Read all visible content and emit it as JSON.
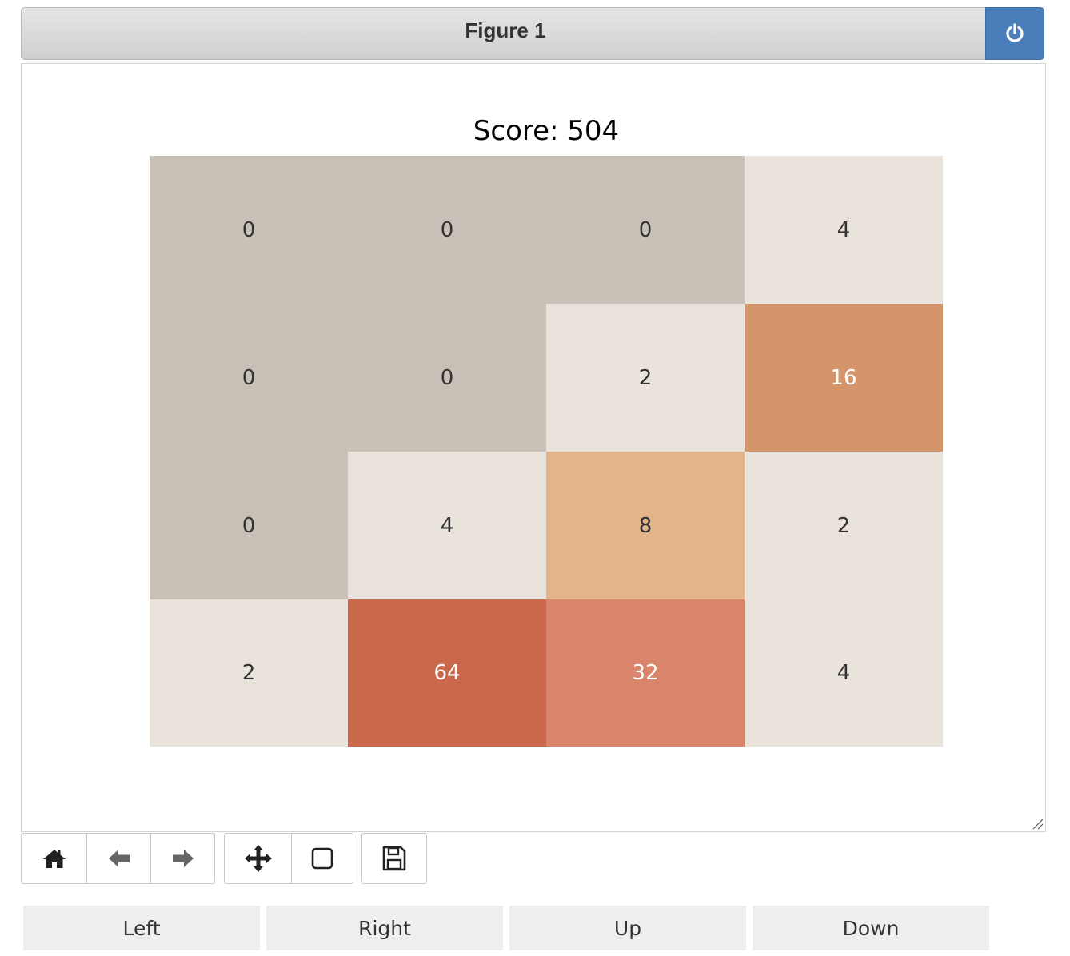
{
  "figure": {
    "title": "Figure 1"
  },
  "score": {
    "label": "Score: 504",
    "value": 504
  },
  "board": {
    "rows": 4,
    "cols": 4,
    "tiles": [
      {
        "value": "0",
        "bg": "#c9c1b8",
        "fg": "#333333"
      },
      {
        "value": "0",
        "bg": "#c9c1b8",
        "fg": "#333333"
      },
      {
        "value": "0",
        "bg": "#c9c1b8",
        "fg": "#333333"
      },
      {
        "value": "4",
        "bg": "#eae3dc",
        "fg": "#333333"
      },
      {
        "value": "0",
        "bg": "#c9c1b8",
        "fg": "#333333"
      },
      {
        "value": "0",
        "bg": "#c9c1b8",
        "fg": "#333333"
      },
      {
        "value": "2",
        "bg": "#eae3dc",
        "fg": "#333333"
      },
      {
        "value": "16",
        "bg": "#d4956a",
        "fg": "#ffffff"
      },
      {
        "value": "0",
        "bg": "#c9c1b8",
        "fg": "#333333"
      },
      {
        "value": "4",
        "bg": "#eae3dc",
        "fg": "#333333"
      },
      {
        "value": "8",
        "bg": "#e1b589",
        "fg": "#333333"
      },
      {
        "value": "2",
        "bg": "#eae3dc",
        "fg": "#333333"
      },
      {
        "value": "2",
        "bg": "#eae3dc",
        "fg": "#333333"
      },
      {
        "value": "64",
        "bg": "#ca684b",
        "fg": "#ffffff"
      },
      {
        "value": "32",
        "bg": "#d8856b",
        "fg": "#ffffff"
      },
      {
        "value": "4",
        "bg": "#eae3dc",
        "fg": "#333333"
      }
    ]
  },
  "toolbar": {
    "home": "home-icon",
    "back": "arrow-left-icon",
    "forward": "arrow-right-icon",
    "pan": "move-icon",
    "zoom": "zoom-rect-icon",
    "save": "floppy-disk-icon"
  },
  "controls": {
    "left": "Left",
    "right": "Right",
    "up": "Up",
    "down": "Down"
  },
  "colors": {
    "power_button": "#4a7eba",
    "empty_tile": "#c9c1b8",
    "light_tile": "#eae3dc"
  }
}
